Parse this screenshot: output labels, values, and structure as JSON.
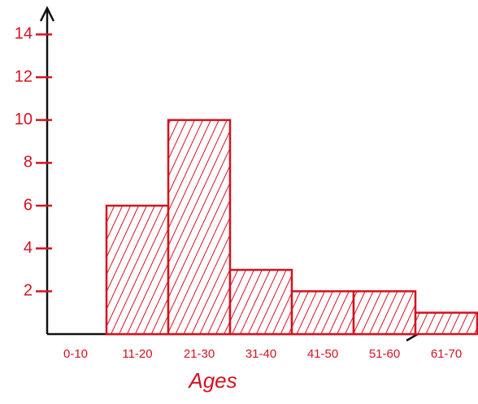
{
  "chart_data": {
    "type": "bar",
    "x_label": "Ages",
    "categories": [
      "0-10",
      "11-20",
      "21-30",
      "31-40",
      "41-50",
      "51-60",
      "61-70"
    ],
    "values": [
      0,
      6,
      10,
      3,
      2,
      2,
      1
    ],
    "color": "#d4121f",
    "ylim": [
      0,
      15
    ],
    "yticks": [
      2,
      4,
      6,
      8,
      10,
      12,
      14
    ],
    "grid": false
  }
}
